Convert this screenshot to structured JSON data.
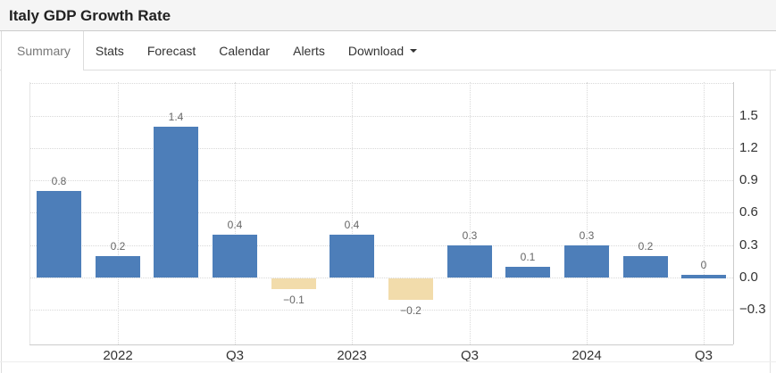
{
  "header": {
    "title": "Italy GDP Growth Rate"
  },
  "tabs": {
    "items": [
      {
        "label": "Summary",
        "active": true
      },
      {
        "label": "Stats",
        "active": false
      },
      {
        "label": "Forecast",
        "active": false
      },
      {
        "label": "Calendar",
        "active": false
      },
      {
        "label": "Alerts",
        "active": false
      },
      {
        "label": "Download",
        "active": false,
        "has_caret": true
      }
    ]
  },
  "chart_data": {
    "type": "bar",
    "title": "Italy GDP Growth Rate",
    "legend": "none",
    "grid": "dotted",
    "ylim": [
      -0.6,
      1.8
    ],
    "x_tick_labels": [
      "",
      "2022",
      "",
      "Q3",
      "",
      "2023",
      "",
      "Q3",
      "",
      "2024",
      "",
      "Q3"
    ],
    "values": [
      0.8,
      0.2,
      1.4,
      0.4,
      -0.1,
      0.4,
      -0.2,
      0.3,
      0.1,
      0.3,
      0.2,
      0
    ],
    "bar_labels": [
      "0.8",
      "0.2",
      "1.4",
      "0.4",
      "−0.1",
      "0.4",
      "−0.2",
      "0.3",
      "0.1",
      "0.3",
      "0.2",
      "0"
    ],
    "yticks": [
      {
        "label": "1.5",
        "value": 1.5
      },
      {
        "label": "1.2",
        "value": 1.2
      },
      {
        "label": "0.9",
        "value": 0.9
      },
      {
        "label": "0.6",
        "value": 0.6
      },
      {
        "label": "0.3",
        "value": 0.3
      },
      {
        "label": "0.0",
        "value": 0.0
      },
      {
        "label": "−0.3",
        "value": -0.3
      }
    ],
    "y_gridlines": [
      1.8,
      1.5,
      1.2,
      0.9,
      0.6,
      0.3,
      0.0,
      -0.3
    ],
    "colors": {
      "positive": "#4d7eb9",
      "negative": "#f2dcab"
    }
  }
}
